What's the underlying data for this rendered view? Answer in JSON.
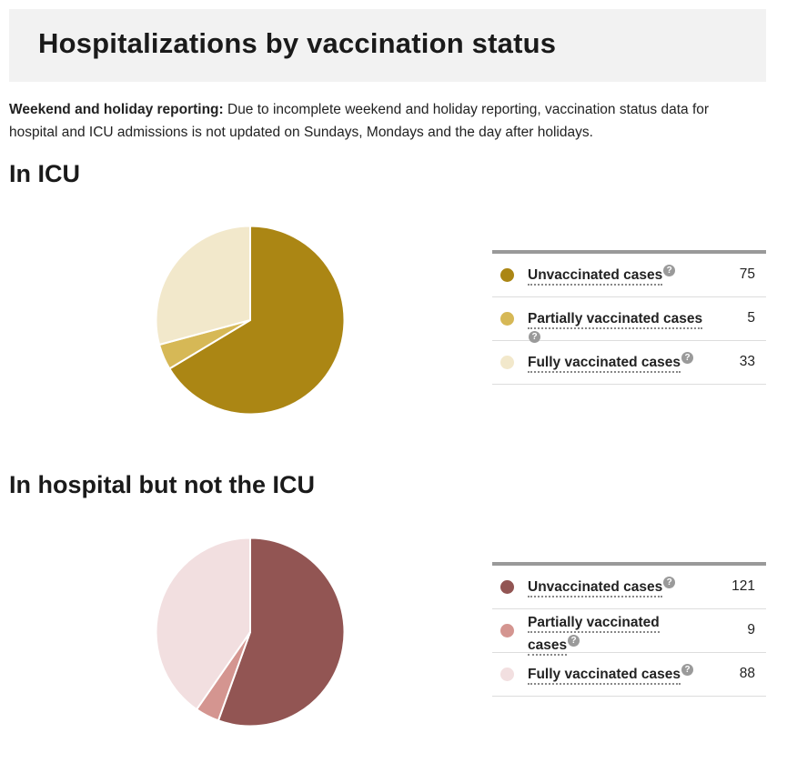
{
  "page": {
    "title": "Hospitalizations by vaccination status",
    "note_label": "Weekend and holiday reporting:",
    "note_text": " Due to incomplete weekend and holiday reporting, vaccination status data for hospital and ICU admissions is not updated on Sundays, Mondays and the day after holidays."
  },
  "chart_data": [
    {
      "type": "pie",
      "title": "In ICU",
      "categories": [
        "Unvaccinated cases",
        "Partially vaccinated cases",
        "Fully vaccinated cases"
      ],
      "values": [
        75,
        5,
        33
      ],
      "colors": [
        "#ab8614",
        "#d6b856",
        "#f2e8cb"
      ],
      "legend": "right",
      "help_icon": "help-icon"
    },
    {
      "type": "pie",
      "title": "In hospital but not the ICU",
      "categories": [
        "Unvaccinated cases",
        "Partially vaccinated cases",
        "Fully vaccinated cases"
      ],
      "values": [
        121,
        9,
        88
      ],
      "colors": [
        "#925553",
        "#d49590",
        "#f2dfe0"
      ],
      "legend": "right",
      "help_icon": "help-icon"
    }
  ]
}
